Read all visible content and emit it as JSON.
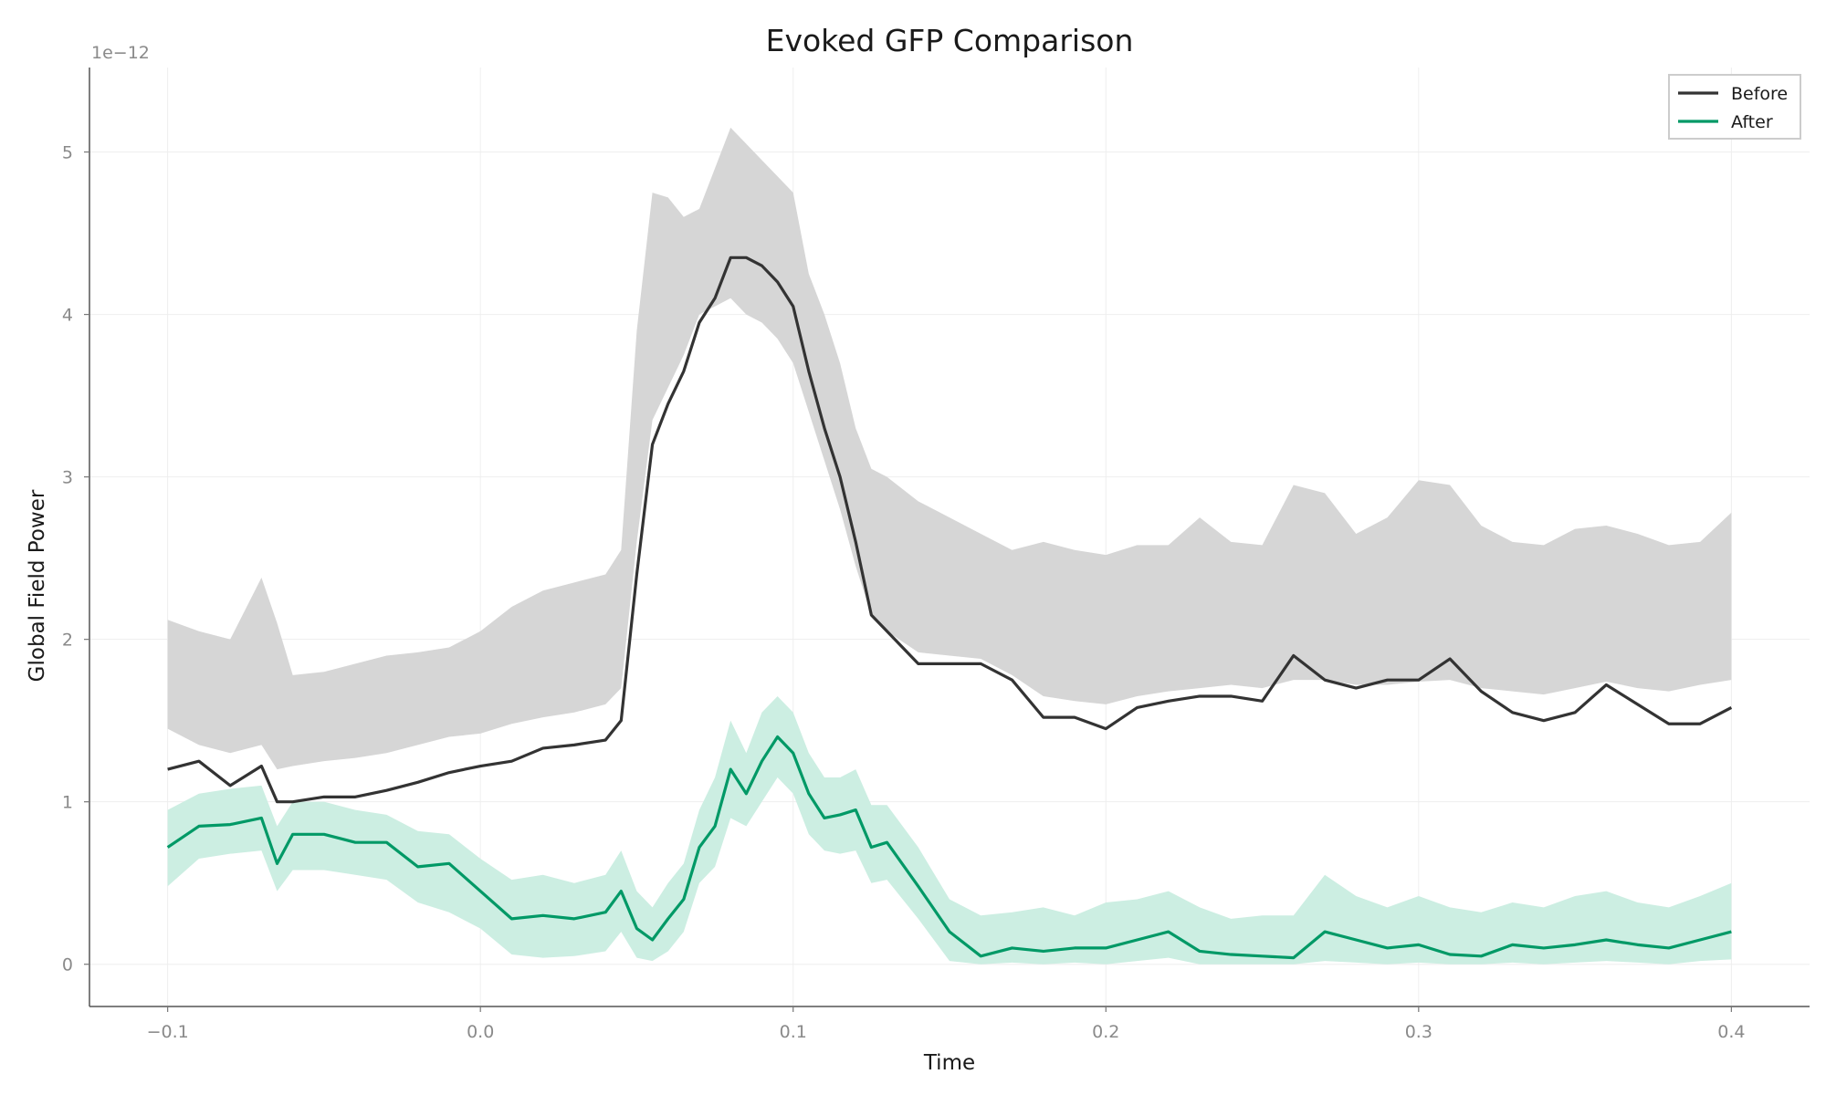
{
  "chart_data": {
    "type": "line",
    "title": "Evoked GFP Comparison",
    "xlabel": "Time",
    "ylabel": "Global Field Power",
    "y_offset_label": "1e−12",
    "xlim": [
      -0.125,
      0.425
    ],
    "ylim": [
      -0.26,
      5.52
    ],
    "x_ticks": [
      -0.1,
      0.0,
      0.1,
      0.2,
      0.3,
      0.4
    ],
    "x_tick_labels": [
      "−0.1",
      "0.0",
      "0.1",
      "0.2",
      "0.3",
      "0.4"
    ],
    "y_ticks": [
      0,
      1,
      2,
      3,
      4,
      5
    ],
    "y_tick_labels": [
      "0",
      "1",
      "2",
      "3",
      "4",
      "5"
    ],
    "grid": true,
    "legend_position": "top-right",
    "series": [
      {
        "name": "Before",
        "color": "#333333",
        "band_color": "#d6d6d6",
        "x": [
          -0.1,
          -0.09,
          -0.08,
          -0.07,
          -0.065,
          -0.06,
          -0.05,
          -0.04,
          -0.03,
          -0.02,
          -0.01,
          0.0,
          0.01,
          0.02,
          0.03,
          0.04,
          0.045,
          0.05,
          0.055,
          0.06,
          0.065,
          0.07,
          0.075,
          0.08,
          0.085,
          0.09,
          0.095,
          0.1,
          0.105,
          0.11,
          0.115,
          0.12,
          0.125,
          0.13,
          0.14,
          0.15,
          0.16,
          0.17,
          0.18,
          0.19,
          0.2,
          0.21,
          0.22,
          0.23,
          0.24,
          0.25,
          0.26,
          0.27,
          0.28,
          0.29,
          0.3,
          0.31,
          0.32,
          0.33,
          0.34,
          0.35,
          0.36,
          0.37,
          0.38,
          0.39,
          0.4
        ],
        "mean": [
          1.2,
          1.25,
          1.1,
          1.22,
          1.0,
          1.0,
          1.03,
          1.03,
          1.07,
          1.12,
          1.18,
          1.22,
          1.25,
          1.33,
          1.35,
          1.38,
          1.5,
          2.4,
          3.2,
          3.45,
          3.65,
          3.95,
          4.1,
          4.35,
          4.35,
          4.3,
          4.2,
          4.05,
          3.65,
          3.3,
          3.0,
          2.6,
          2.15,
          2.05,
          1.85,
          1.85,
          1.85,
          1.75,
          1.52,
          1.52,
          1.45,
          1.58,
          1.62,
          1.65,
          1.65,
          1.62,
          1.9,
          1.75,
          1.7,
          1.75,
          1.75,
          1.88,
          1.68,
          1.55,
          1.5,
          1.55,
          1.72,
          1.6,
          1.48,
          1.48,
          1.58
        ],
        "lower": [
          1.45,
          1.35,
          1.3,
          1.35,
          1.2,
          1.22,
          1.25,
          1.27,
          1.3,
          1.35,
          1.4,
          1.42,
          1.48,
          1.52,
          1.55,
          1.6,
          1.7,
          2.6,
          3.35,
          3.55,
          3.75,
          4.0,
          4.05,
          4.1,
          4.0,
          3.95,
          3.85,
          3.7,
          3.4,
          3.1,
          2.8,
          2.45,
          2.15,
          2.05,
          1.92,
          1.9,
          1.88,
          1.78,
          1.65,
          1.62,
          1.6,
          1.65,
          1.68,
          1.7,
          1.72,
          1.7,
          1.75,
          1.75,
          1.72,
          1.72,
          1.74,
          1.75,
          1.7,
          1.68,
          1.66,
          1.7,
          1.74,
          1.7,
          1.68,
          1.72,
          1.75
        ],
        "upper": [
          2.12,
          2.05,
          2.0,
          2.38,
          2.1,
          1.78,
          1.8,
          1.85,
          1.9,
          1.92,
          1.95,
          2.05,
          2.2,
          2.3,
          2.35,
          2.4,
          2.55,
          3.9,
          4.75,
          4.72,
          4.6,
          4.65,
          4.9,
          5.15,
          5.05,
          4.95,
          4.85,
          4.75,
          4.25,
          4.0,
          3.7,
          3.3,
          3.05,
          3.0,
          2.85,
          2.75,
          2.65,
          2.55,
          2.6,
          2.55,
          2.52,
          2.58,
          2.58,
          2.75,
          2.6,
          2.58,
          2.95,
          2.9,
          2.65,
          2.75,
          2.98,
          2.95,
          2.7,
          2.6,
          2.58,
          2.68,
          2.7,
          2.65,
          2.58,
          2.6,
          2.78
        ]
      },
      {
        "name": "After",
        "color": "#009966",
        "band_color": "#cceee2",
        "x": [
          -0.1,
          -0.09,
          -0.08,
          -0.07,
          -0.065,
          -0.06,
          -0.05,
          -0.04,
          -0.03,
          -0.02,
          -0.01,
          0.0,
          0.01,
          0.02,
          0.03,
          0.04,
          0.045,
          0.05,
          0.055,
          0.06,
          0.065,
          0.07,
          0.075,
          0.08,
          0.085,
          0.09,
          0.095,
          0.1,
          0.105,
          0.11,
          0.115,
          0.12,
          0.125,
          0.13,
          0.14,
          0.15,
          0.16,
          0.17,
          0.18,
          0.19,
          0.2,
          0.21,
          0.22,
          0.23,
          0.24,
          0.25,
          0.26,
          0.27,
          0.28,
          0.29,
          0.3,
          0.31,
          0.32,
          0.33,
          0.34,
          0.35,
          0.36,
          0.37,
          0.38,
          0.39,
          0.4
        ],
        "mean": [
          0.72,
          0.85,
          0.86,
          0.9,
          0.62,
          0.8,
          0.8,
          0.75,
          0.75,
          0.6,
          0.62,
          0.45,
          0.28,
          0.3,
          0.28,
          0.32,
          0.45,
          0.22,
          0.15,
          0.28,
          0.4,
          0.72,
          0.85,
          1.2,
          1.05,
          1.25,
          1.4,
          1.3,
          1.05,
          0.9,
          0.92,
          0.95,
          0.72,
          0.75,
          0.48,
          0.2,
          0.05,
          0.1,
          0.08,
          0.1,
          0.1,
          0.15,
          0.2,
          0.08,
          0.06,
          0.05,
          0.04,
          0.2,
          0.15,
          0.1,
          0.12,
          0.06,
          0.05,
          0.12,
          0.1,
          0.12,
          0.15,
          0.12,
          0.1,
          0.15,
          0.2
        ],
        "lower": [
          0.48,
          0.65,
          0.68,
          0.7,
          0.45,
          0.58,
          0.58,
          0.55,
          0.52,
          0.38,
          0.32,
          0.22,
          0.06,
          0.04,
          0.05,
          0.08,
          0.2,
          0.04,
          0.02,
          0.08,
          0.2,
          0.5,
          0.6,
          0.9,
          0.85,
          1.0,
          1.15,
          1.05,
          0.8,
          0.7,
          0.68,
          0.7,
          0.5,
          0.52,
          0.28,
          0.02,
          0.0,
          0.01,
          0.0,
          0.01,
          0.0,
          0.02,
          0.04,
          0.0,
          0.0,
          0.0,
          0.0,
          0.02,
          0.01,
          0.0,
          0.01,
          0.0,
          0.0,
          0.01,
          0.0,
          0.01,
          0.02,
          0.01,
          0.0,
          0.02,
          0.03
        ],
        "upper": [
          0.95,
          1.05,
          1.08,
          1.1,
          0.85,
          1.0,
          1.0,
          0.95,
          0.92,
          0.82,
          0.8,
          0.65,
          0.52,
          0.55,
          0.5,
          0.55,
          0.7,
          0.45,
          0.35,
          0.5,
          0.62,
          0.95,
          1.15,
          1.5,
          1.3,
          1.55,
          1.65,
          1.55,
          1.3,
          1.15,
          1.15,
          1.2,
          0.98,
          0.98,
          0.72,
          0.4,
          0.3,
          0.32,
          0.35,
          0.3,
          0.38,
          0.4,
          0.45,
          0.35,
          0.28,
          0.3,
          0.3,
          0.55,
          0.42,
          0.35,
          0.42,
          0.35,
          0.32,
          0.38,
          0.35,
          0.42,
          0.45,
          0.38,
          0.35,
          0.42,
          0.5
        ]
      }
    ]
  }
}
